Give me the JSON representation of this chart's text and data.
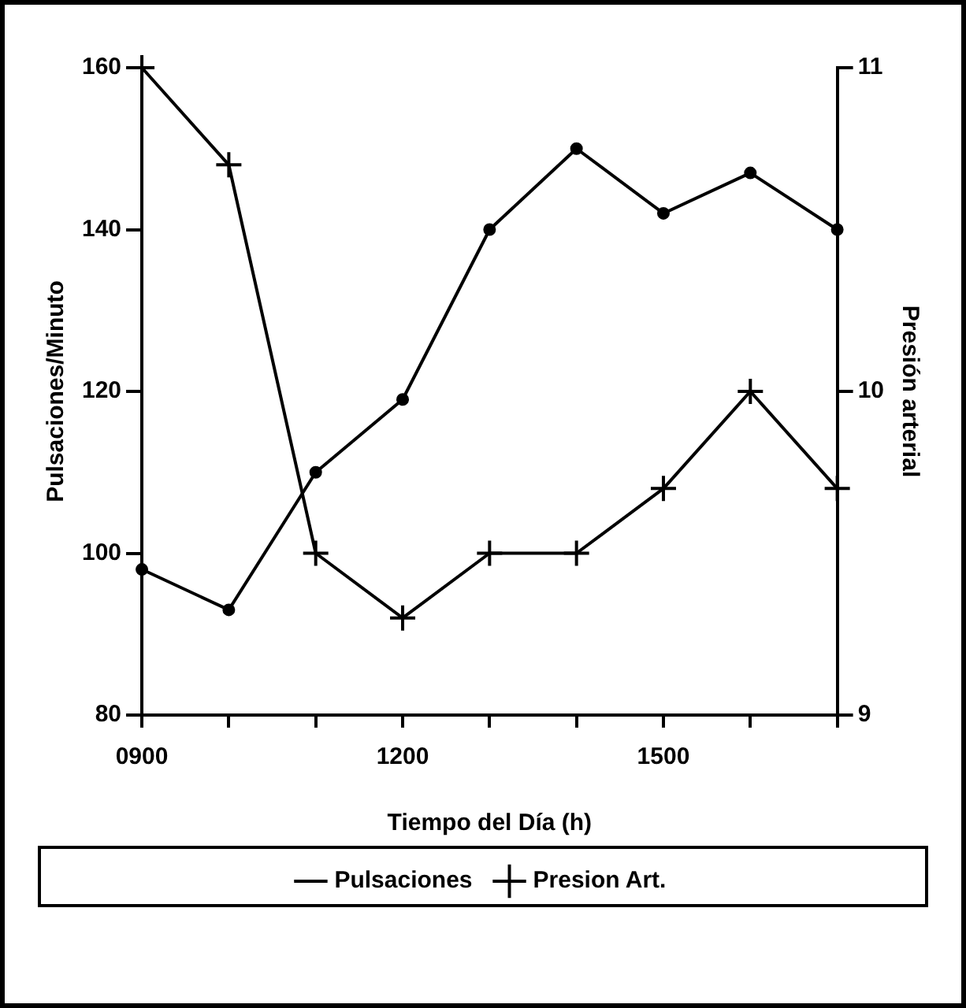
{
  "chart_data": {
    "type": "line",
    "xlabel": "Tiempo del Día (h)",
    "ylabel": "Pulsaciones/Minuto",
    "y2label": "Presión arterial",
    "categories": [
      "0900",
      null,
      null,
      "1200",
      null,
      null,
      "1500",
      null,
      null
    ],
    "series": [
      {
        "name": "Pulsaciones",
        "color": "#000000",
        "marker": "circle",
        "values": [
          98,
          93,
          110,
          119,
          140,
          150,
          142,
          147,
          140
        ]
      },
      {
        "name": "Presion Art.",
        "color": "#000000",
        "marker": "cross",
        "axis": "y2",
        "values": [
          11,
          10.7,
          9.5,
          9.3,
          9.5,
          9.5,
          9.7,
          10,
          9.7
        ]
      }
    ],
    "ylim": [
      80,
      160
    ],
    "yticks": [
      80,
      100,
      120,
      140,
      160
    ],
    "y2lim": [
      9,
      11
    ],
    "y2ticks": [
      9,
      10,
      11
    ],
    "grid": false,
    "legend": "bottom",
    "line_style": "solid"
  }
}
